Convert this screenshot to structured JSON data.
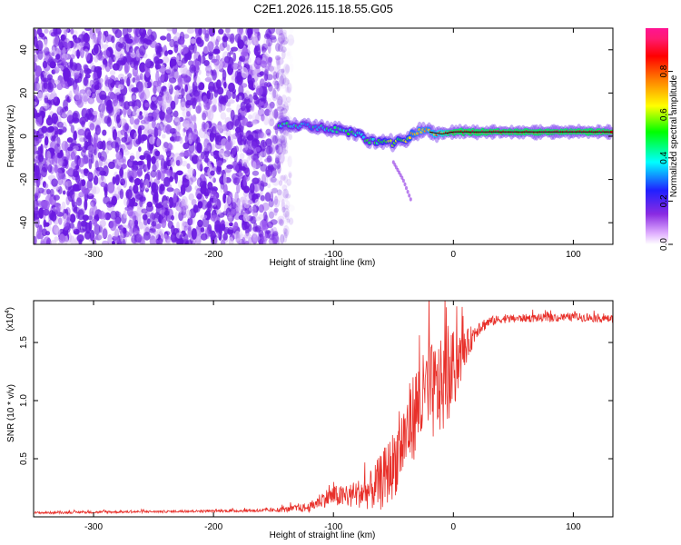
{
  "title": "C2E1.2026.115.18.55.G05",
  "chart_data": [
    {
      "type": "heatmap",
      "name": "spectrogram",
      "xlabel": "Height of straight line (km)",
      "ylabel": "Frequency (Hz)",
      "xlim": [
        -350,
        133
      ],
      "ylim": [
        -50,
        50
      ],
      "xticks": [
        -300,
        -200,
        -100,
        0,
        100
      ],
      "xtick_labels": [
        "-300",
        "-200",
        "-100",
        "0",
        "100"
      ],
      "yticks": [
        -40,
        -20,
        0,
        20,
        40
      ],
      "ytick_labels": [
        "-40",
        "-20",
        "0",
        "20",
        "40"
      ],
      "noise_region": {
        "x_start": -350,
        "x_end": -135,
        "f_range": [
          -50,
          50
        ],
        "amplitude": 0.12
      },
      "signal_track": {
        "x": [
          -145,
          -130,
          -120,
          -110,
          -100,
          -90,
          -80,
          -70,
          -60,
          -55,
          -50,
          -45,
          -40,
          -35,
          -30,
          -25,
          -20,
          -10,
          0,
          10,
          30,
          60,
          80,
          100,
          120,
          133
        ],
        "freq": [
          5,
          5,
          4.5,
          4,
          3,
          2.5,
          1,
          -2,
          -3,
          -2,
          -4,
          -1,
          -3,
          1,
          2,
          3,
          2,
          1,
          2,
          2,
          2,
          2,
          2,
          2,
          2,
          2
        ],
        "amplitude": [
          0.45,
          0.4,
          0.4,
          0.4,
          0.45,
          0.45,
          0.45,
          0.45,
          0.5,
          0.55,
          0.55,
          0.55,
          0.55,
          0.6,
          0.65,
          0.65,
          0.65,
          0.75,
          0.85,
          0.85,
          0.85,
          0.85,
          0.85,
          0.85,
          0.85,
          0.85
        ]
      },
      "secondary_trace": {
        "x": [
          -50,
          -42,
          -35
        ],
        "freq": [
          -12,
          -20,
          -30
        ]
      },
      "colorbar": {
        "label": "Normalized spectral amplitude",
        "range": [
          0,
          1
        ],
        "ticks": [
          0.0,
          0.2,
          0.4,
          0.6,
          0.8
        ],
        "tick_labels": [
          "0.0",
          "0.2",
          "0.4",
          "0.6",
          "0.8"
        ],
        "colormap": [
          "#ffffff",
          "#e0b0ff",
          "#8a2be2",
          "#2020ff",
          "#00ffff",
          "#00ff00",
          "#ffff00",
          "#ff8000",
          "#ff0000",
          "#ff1a6e",
          "#ff1493"
        ]
      },
      "colors": {
        "noise": "#6a1ae0",
        "track_line": "#000000"
      }
    },
    {
      "type": "line",
      "name": "snr",
      "xlabel": "Height of straight line (km)",
      "ylabel": "SNR (10 * v/v)",
      "scale_label": "(x10",
      "scale_exponent": "4",
      "xlim": [
        -350,
        133
      ],
      "ylim": [
        0,
        18600
      ],
      "xticks": [
        -300,
        -200,
        -100,
        0,
        100
      ],
      "xtick_labels": [
        "-300",
        "-200",
        "-100",
        "0",
        "100"
      ],
      "yticks": [
        5000,
        10000,
        15000
      ],
      "ytick_labels": [
        "0.5",
        "1.0",
        "1.5"
      ],
      "series": [
        {
          "name": "SNR",
          "color": "#e8302a",
          "x": [
            -350,
            -300,
            -250,
            -200,
            -150,
            -120,
            -110,
            -100,
            -90,
            -80,
            -70,
            -60,
            -50,
            -40,
            -30,
            -20,
            -10,
            0,
            10,
            20,
            30,
            40,
            60,
            80,
            100,
            120,
            133
          ],
          "mean": [
            350,
            400,
            450,
            500,
            550,
            800,
            1500,
            1800,
            1700,
            2000,
            2200,
            3000,
            4500,
            7000,
            9500,
            10500,
            11000,
            12500,
            14500,
            16200,
            16800,
            17000,
            17100,
            17100,
            17200,
            17100,
            17000
          ],
          "spread": [
            100,
            100,
            100,
            100,
            150,
            400,
            700,
            900,
            1000,
            1200,
            1600,
            2500,
            3000,
            3500,
            4000,
            4200,
            4200,
            3500,
            1500,
            700,
            450,
            350,
            350,
            350,
            350,
            350,
            300
          ]
        }
      ]
    }
  ]
}
